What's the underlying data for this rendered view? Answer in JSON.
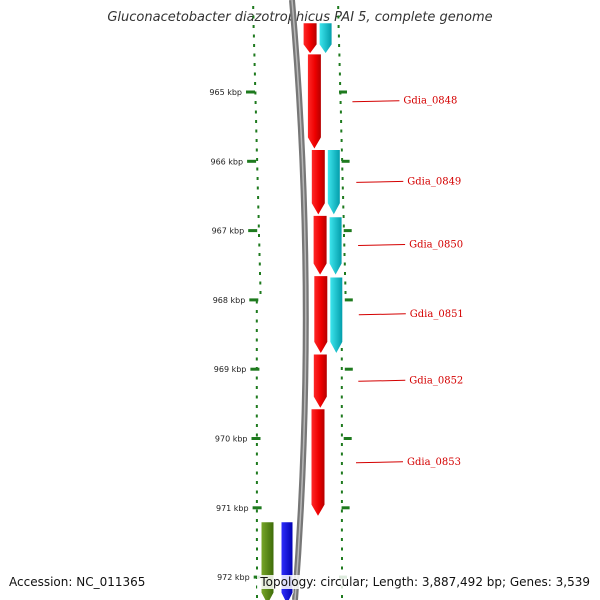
{
  "title": "Gluconacetobacter diazotrophicus PAI 5, complete genome",
  "scale": {
    "unit": "kbp",
    "ticks": [
      {
        "label": "965 kbp",
        "value": 965
      },
      {
        "label": "966 kbp",
        "value": 966
      },
      {
        "label": "967 kbp",
        "value": 967
      },
      {
        "label": "968 kbp",
        "value": 968
      },
      {
        "label": "969 kbp",
        "value": 969
      },
      {
        "label": "970 kbp",
        "value": 970
      },
      {
        "label": "971 kbp",
        "value": 971
      },
      {
        "label": "972 kbp",
        "value": 972
      }
    ]
  },
  "genes": [
    {
      "name": "",
      "track": "red",
      "start": 964.0,
      "end": 964.45,
      "color": "#ff0000"
    },
    {
      "name": "Gdia_0848",
      "track": "red",
      "start": 964.45,
      "end": 965.83,
      "color": "#ff0000"
    },
    {
      "name": "Gdia_0849",
      "track": "red",
      "start": 965.83,
      "end": 966.78,
      "color": "#ff0000"
    },
    {
      "name": "Gdia_0850",
      "track": "red",
      "start": 966.78,
      "end": 967.65,
      "color": "#ff0000"
    },
    {
      "name": "Gdia_0851",
      "track": "red",
      "start": 967.65,
      "end": 968.78,
      "color": "#ff0000"
    },
    {
      "name": "Gdia_0852",
      "track": "red",
      "start": 968.78,
      "end": 969.57,
      "color": "#ff0000"
    },
    {
      "name": "Gdia_0853",
      "track": "red",
      "start": 969.57,
      "end": 971.13,
      "color": "#ff0000"
    },
    {
      "name": "",
      "track": "cyan",
      "start": 964.0,
      "end": 964.45,
      "color": "#00d8e8"
    },
    {
      "name": "",
      "track": "cyan",
      "start": 965.83,
      "end": 966.78,
      "color": "#00c8c8"
    },
    {
      "name": "",
      "track": "cyan",
      "start": 966.8,
      "end": 967.65,
      "color": "#00c8c8"
    },
    {
      "name": "",
      "track": "cyan",
      "start": 967.67,
      "end": 968.78,
      "color": "#00c8c8"
    },
    {
      "name": "",
      "track": "olive",
      "start": 971.2,
      "end": 972.4,
      "color": "#5a8a1a"
    },
    {
      "name": "",
      "track": "blue",
      "start": 971.2,
      "end": 972.4,
      "color": "#0000ff"
    }
  ],
  "footer": {
    "accession": "Accession: NC_011365",
    "summary": "Topology: circular; Length: 3,887,492 bp; Genes: 3,539"
  }
}
